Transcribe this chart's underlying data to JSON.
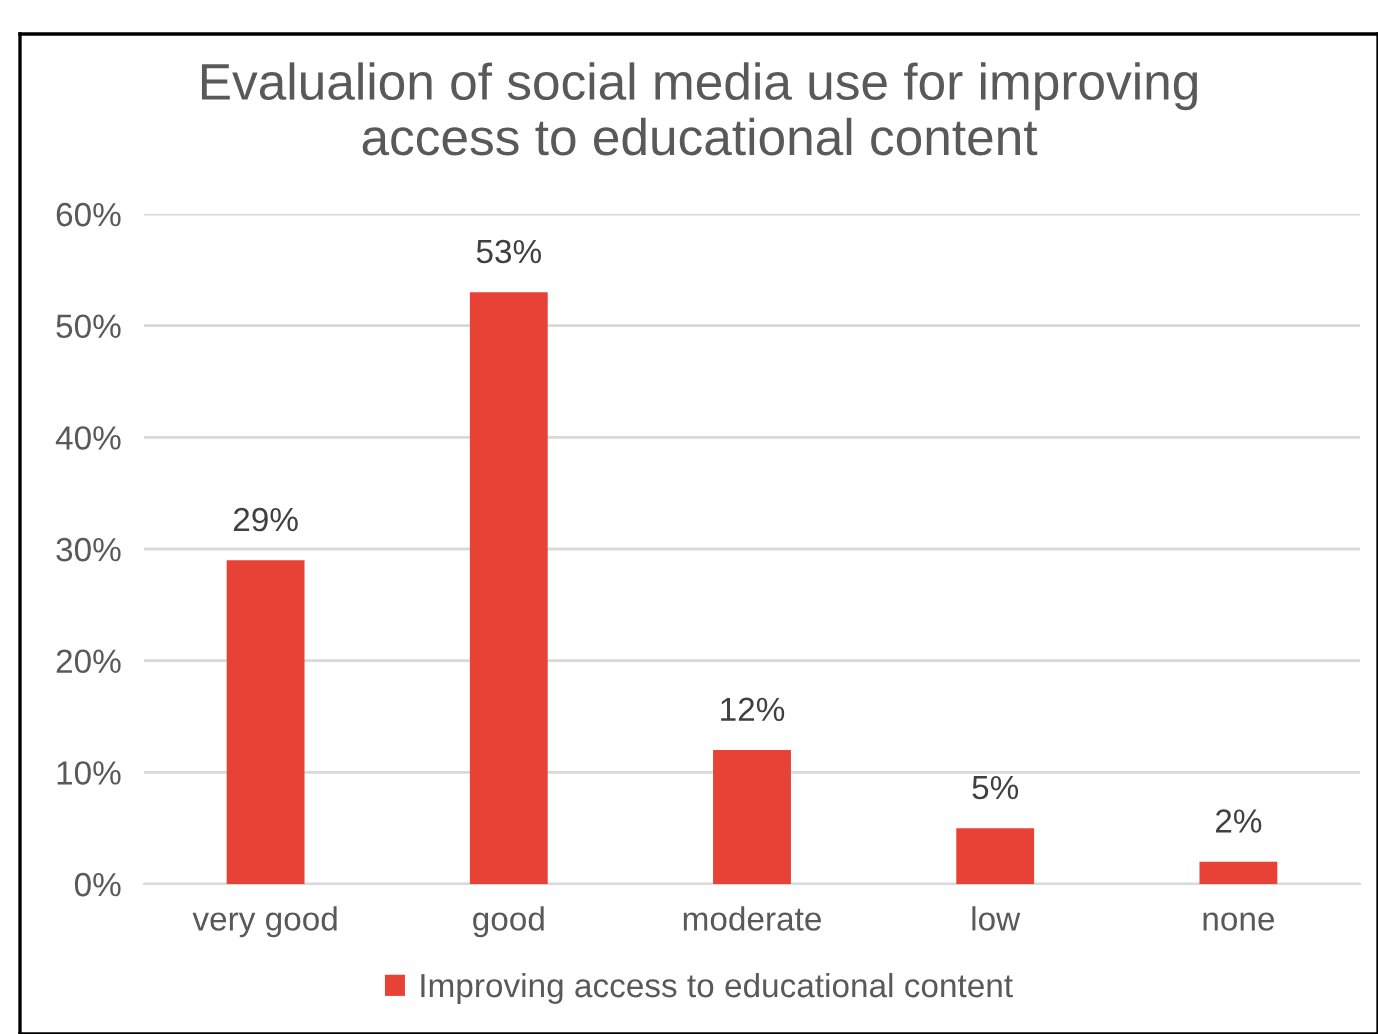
{
  "chart_data": {
    "type": "bar",
    "title": "Evalualion of social media use for improving\naccess to educational content",
    "categories": [
      "very good",
      "good",
      "moderate",
      "low",
      "none"
    ],
    "series": [
      {
        "name": "Improving access to educational content",
        "color": "#e84135",
        "values": [
          29,
          53,
          12,
          5,
          2
        ]
      }
    ],
    "value_labels": [
      "29%",
      "53%",
      "12%",
      "5%",
      "2%"
    ],
    "ylim": [
      0,
      60
    ],
    "yticks": [
      {
        "value": 0,
        "label": "0%"
      },
      {
        "value": 10,
        "label": "10%"
      },
      {
        "value": 20,
        "label": "20%"
      },
      {
        "value": 30,
        "label": "30%"
      },
      {
        "value": 40,
        "label": "40%"
      },
      {
        "value": 50,
        "label": "50%"
      },
      {
        "value": 60,
        "label": "60%"
      }
    ],
    "grid": "y",
    "legend": "bottom"
  }
}
